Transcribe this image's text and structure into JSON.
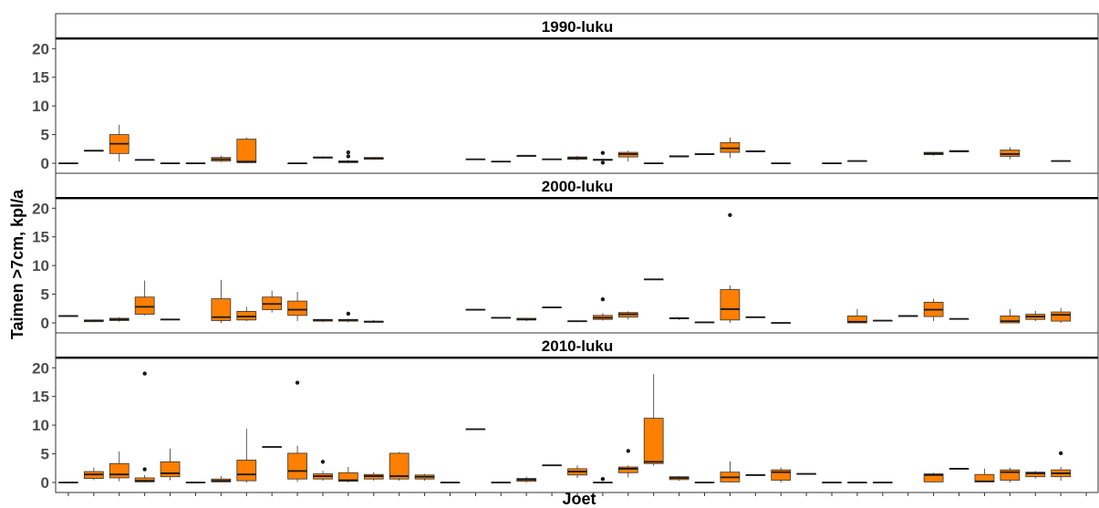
{
  "colors": {
    "box_fill": "#FF7F00"
  },
  "chart_data": {
    "type": "boxplot",
    "xlabel": "Joet",
    "ylabel": "Taimen >7cm, kpl/a",
    "ylim": [
      0,
      21
    ],
    "yticks": [
      0,
      5,
      10,
      15,
      20
    ],
    "n_categories": 41,
    "grid": false,
    "panels": [
      {
        "title": "1990-luku",
        "boxes": [
          {
            "x": 1,
            "min": 0,
            "q1": 0,
            "median": 0,
            "q3": 0,
            "max": 0
          },
          {
            "x": 2,
            "min": 2.2,
            "q1": 2.2,
            "median": 2.2,
            "q3": 2.2,
            "max": 2.2
          },
          {
            "x": 3,
            "min": 0.3,
            "q1": 1.7,
            "median": 3.4,
            "q3": 5.0,
            "max": 6.7
          },
          {
            "x": 4,
            "min": 0.6,
            "q1": 0.6,
            "median": 0.6,
            "q3": 0.6,
            "max": 0.6
          },
          {
            "x": 5,
            "min": 0,
            "q1": 0,
            "median": 0,
            "q3": 0,
            "max": 0
          },
          {
            "x": 6,
            "min": 0,
            "q1": 0,
            "median": 0,
            "q3": 0,
            "max": 0
          },
          {
            "x": 7,
            "min": 0.2,
            "q1": 0.4,
            "median": 0.7,
            "q3": 1.0,
            "max": 1.3
          },
          {
            "x": 8,
            "min": 0,
            "q1": 0.1,
            "median": 0.3,
            "q3": 4.2,
            "max": 4.5
          },
          {
            "x": 10,
            "min": 0,
            "q1": 0,
            "median": 0,
            "q3": 0,
            "max": 0
          },
          {
            "x": 11,
            "min": 0.8,
            "q1": 0.9,
            "median": 1.0,
            "q3": 1.1,
            "max": 1.2
          },
          {
            "x": 12,
            "min": 0,
            "q1": 0.1,
            "median": 0.3,
            "q3": 0.4,
            "max": 0.6,
            "outliers": [
              1.2,
              1.9
            ]
          },
          {
            "x": 13,
            "min": 0.6,
            "q1": 0.7,
            "median": 0.9,
            "q3": 1.0,
            "max": 1.1
          },
          {
            "x": 17,
            "min": 0.7,
            "q1": 0.7,
            "median": 0.7,
            "q3": 0.7,
            "max": 0.7
          },
          {
            "x": 18,
            "min": 0.3,
            "q1": 0.3,
            "median": 0.3,
            "q3": 0.3,
            "max": 0.3
          },
          {
            "x": 19,
            "min": 1.3,
            "q1": 1.3,
            "median": 1.3,
            "q3": 1.3,
            "max": 1.3
          },
          {
            "x": 20,
            "min": 0.7,
            "q1": 0.7,
            "median": 0.7,
            "q3": 0.7,
            "max": 0.7
          },
          {
            "x": 21,
            "min": 0.5,
            "q1": 0.7,
            "median": 0.9,
            "q3": 1.1,
            "max": 1.3
          },
          {
            "x": 22,
            "min": 0.4,
            "q1": 0.5,
            "median": 0.6,
            "q3": 0.7,
            "max": 0.8,
            "outliers": [
              0.1,
              1.8
            ]
          },
          {
            "x": 23,
            "min": 0.3,
            "q1": 1.1,
            "median": 1.6,
            "q3": 1.9,
            "max": 2.2
          },
          {
            "x": 24,
            "min": 0,
            "q1": 0,
            "median": 0,
            "q3": 0,
            "max": 0
          },
          {
            "x": 25,
            "min": 1.1,
            "q1": 1.1,
            "median": 1.2,
            "q3": 1.3,
            "max": 1.3
          },
          {
            "x": 26,
            "min": 1.6,
            "q1": 1.6,
            "median": 1.6,
            "q3": 1.6,
            "max": 1.6
          },
          {
            "x": 27,
            "min": 0.9,
            "q1": 1.9,
            "median": 2.6,
            "q3": 3.6,
            "max": 4.5
          },
          {
            "x": 28,
            "min": 2.1,
            "q1": 2.1,
            "median": 2.1,
            "q3": 2.1,
            "max": 2.1
          },
          {
            "x": 29,
            "min": 0,
            "q1": 0,
            "median": 0,
            "q3": 0,
            "max": 0
          },
          {
            "x": 31,
            "min": 0,
            "q1": 0,
            "median": 0,
            "q3": 0,
            "max": 0
          },
          {
            "x": 32,
            "min": 0.4,
            "q1": 0.4,
            "median": 0.4,
            "q3": 0.4,
            "max": 0.4
          },
          {
            "x": 35,
            "min": 1.3,
            "q1": 1.5,
            "median": 1.7,
            "q3": 1.9,
            "max": 2.0
          },
          {
            "x": 36,
            "min": 1.9,
            "q1": 2.0,
            "median": 2.1,
            "q3": 2.2,
            "max": 2.2
          },
          {
            "x": 38,
            "min": 0.7,
            "q1": 1.2,
            "median": 1.6,
            "q3": 2.3,
            "max": 2.8
          },
          {
            "x": 40,
            "min": 0.4,
            "q1": 0.4,
            "median": 0.4,
            "q3": 0.4,
            "max": 0.4
          }
        ]
      },
      {
        "title": "2000-luku",
        "boxes": [
          {
            "x": 1,
            "min": 1.2,
            "q1": 1.2,
            "median": 1.2,
            "q3": 1.2,
            "max": 1.2
          },
          {
            "x": 2,
            "min": 0.1,
            "q1": 0.2,
            "median": 0.4,
            "q3": 0.5,
            "max": 0.6
          },
          {
            "x": 3,
            "min": 0.2,
            "q1": 0.4,
            "median": 0.6,
            "q3": 0.8,
            "max": 1.0
          },
          {
            "x": 4,
            "min": 1.3,
            "q1": 1.5,
            "median": 2.8,
            "q3": 4.5,
            "max": 7.4
          },
          {
            "x": 5,
            "min": 0.6,
            "q1": 0.6,
            "median": 0.6,
            "q3": 0.6,
            "max": 0.6
          },
          {
            "x": 7,
            "min": 0,
            "q1": 0.4,
            "median": 1.0,
            "q3": 4.2,
            "max": 7.5
          },
          {
            "x": 8,
            "min": 0.3,
            "q1": 0.5,
            "median": 1.1,
            "q3": 2.0,
            "max": 2.8
          },
          {
            "x": 9,
            "min": 1.8,
            "q1": 2.3,
            "median": 3.3,
            "q3": 4.5,
            "max": 5.6
          },
          {
            "x": 10,
            "min": 0.3,
            "q1": 1.3,
            "median": 2.3,
            "q3": 3.8,
            "max": 5.4
          },
          {
            "x": 11,
            "min": 0.1,
            "q1": 0.3,
            "median": 0.5,
            "q3": 0.6,
            "max": 0.7
          },
          {
            "x": 12,
            "min": 0.1,
            "q1": 0.3,
            "median": 0.5,
            "q3": 0.6,
            "max": 0.7,
            "outliers": [
              1.6
            ]
          },
          {
            "x": 13,
            "min": 0,
            "q1": 0.1,
            "median": 0.2,
            "q3": 0.3,
            "max": 0.5
          },
          {
            "x": 17,
            "min": 2.3,
            "q1": 2.3,
            "median": 2.3,
            "q3": 2.3,
            "max": 2.3
          },
          {
            "x": 18,
            "min": 0.9,
            "q1": 0.9,
            "median": 0.9,
            "q3": 0.9,
            "max": 0.9
          },
          {
            "x": 19,
            "min": 0.3,
            "q1": 0.5,
            "median": 0.6,
            "q3": 0.8,
            "max": 0.9
          },
          {
            "x": 20,
            "min": 2.7,
            "q1": 2.7,
            "median": 2.7,
            "q3": 2.7,
            "max": 2.7
          },
          {
            "x": 21,
            "min": 0.1,
            "q1": 0.2,
            "median": 0.3,
            "q3": 0.3,
            "max": 0.4
          },
          {
            "x": 22,
            "min": 0.4,
            "q1": 0.6,
            "median": 0.9,
            "q3": 1.3,
            "max": 1.7,
            "outliers": [
              4.1
            ]
          },
          {
            "x": 23,
            "min": 0.6,
            "q1": 1.0,
            "median": 1.5,
            "q3": 1.8,
            "max": 2.0
          },
          {
            "x": 24,
            "min": 7.6,
            "q1": 7.6,
            "median": 7.6,
            "q3": 7.6,
            "max": 7.6
          },
          {
            "x": 25,
            "min": 0.5,
            "q1": 0.7,
            "median": 0.8,
            "q3": 0.9,
            "max": 1.0
          },
          {
            "x": 26,
            "min": 0.1,
            "q1": 0.1,
            "median": 0.1,
            "q3": 0.1,
            "max": 0.1
          },
          {
            "x": 27,
            "min": 0,
            "q1": 0.5,
            "median": 2.4,
            "q3": 5.8,
            "max": 6.5,
            "outliers": [
              18.8
            ]
          },
          {
            "x": 28,
            "min": 1.0,
            "q1": 1.0,
            "median": 1.0,
            "q3": 1.0,
            "max": 1.0
          },
          {
            "x": 29,
            "min": 0,
            "q1": 0,
            "median": 0,
            "q3": 0,
            "max": 0
          },
          {
            "x": 32,
            "min": 0,
            "q1": 0,
            "median": 0.2,
            "q3": 1.2,
            "max": 2.4
          },
          {
            "x": 33,
            "min": 0.4,
            "q1": 0.4,
            "median": 0.4,
            "q3": 0.4,
            "max": 0.4
          },
          {
            "x": 34,
            "min": 1.2,
            "q1": 1.2,
            "median": 1.2,
            "q3": 1.2,
            "max": 1.2
          },
          {
            "x": 35,
            "min": 0.3,
            "q1": 1.1,
            "median": 2.3,
            "q3": 3.6,
            "max": 4.2
          },
          {
            "x": 36,
            "min": 0.7,
            "q1": 0.7,
            "median": 0.7,
            "q3": 0.7,
            "max": 0.7
          },
          {
            "x": 38,
            "min": 0,
            "q1": 0,
            "median": 0.3,
            "q3": 1.2,
            "max": 2.4
          },
          {
            "x": 39,
            "min": 0.3,
            "q1": 0.6,
            "median": 1.1,
            "q3": 1.5,
            "max": 2.1
          },
          {
            "x": 40,
            "min": 0,
            "q1": 0.3,
            "median": 1.4,
            "q3": 1.9,
            "max": 2.6
          }
        ]
      },
      {
        "title": "2010-luku",
        "boxes": [
          {
            "x": 1,
            "min": 0,
            "q1": 0,
            "median": 0,
            "q3": 0,
            "max": 0
          },
          {
            "x": 2,
            "min": 0.4,
            "q1": 0.7,
            "median": 1.4,
            "q3": 1.9,
            "max": 2.6
          },
          {
            "x": 3,
            "min": 0.2,
            "q1": 0.8,
            "median": 1.4,
            "q3": 3.3,
            "max": 5.4
          },
          {
            "x": 4,
            "min": 0,
            "q1": 0.1,
            "median": 0.3,
            "q3": 0.8,
            "max": 1.3,
            "outliers": [
              2.3,
              19.0
            ]
          },
          {
            "x": 5,
            "min": 0.4,
            "q1": 1.0,
            "median": 1.6,
            "q3": 3.6,
            "max": 5.9
          },
          {
            "x": 6,
            "min": 0,
            "q1": 0,
            "median": 0,
            "q3": 0,
            "max": 0
          },
          {
            "x": 7,
            "min": 0,
            "q1": 0.1,
            "median": 0.3,
            "q3": 0.6,
            "max": 1.1
          },
          {
            "x": 8,
            "min": 0,
            "q1": 0.3,
            "median": 1.4,
            "q3": 3.9,
            "max": 9.4
          },
          {
            "x": 9,
            "min": 6.2,
            "q1": 6.2,
            "median": 6.2,
            "q3": 6.2,
            "max": 6.2
          },
          {
            "x": 10,
            "min": 0.1,
            "q1": 0.6,
            "median": 2.0,
            "q3": 5.1,
            "max": 6.4,
            "outliers": [
              17.4
            ]
          },
          {
            "x": 11,
            "min": 0.3,
            "q1": 0.6,
            "median": 1.1,
            "q3": 1.5,
            "max": 2.0,
            "outliers": [
              3.6
            ]
          },
          {
            "x": 12,
            "min": 0,
            "q1": 0.2,
            "median": 0.4,
            "q3": 1.7,
            "max": 2.7
          },
          {
            "x": 13,
            "min": 0.3,
            "q1": 0.6,
            "median": 1.1,
            "q3": 1.4,
            "max": 1.8
          },
          {
            "x": 14,
            "min": 0.3,
            "q1": 0.6,
            "median": 1.1,
            "q3": 5.1,
            "max": 5.3
          },
          {
            "x": 15,
            "min": 0.3,
            "q1": 0.6,
            "median": 1.0,
            "q3": 1.3,
            "max": 1.5
          },
          {
            "x": 16,
            "min": 0,
            "q1": 0,
            "median": 0,
            "q3": 0,
            "max": 0
          },
          {
            "x": 17,
            "min": 9.3,
            "q1": 9.3,
            "median": 9.3,
            "q3": 9.3,
            "max": 9.3
          },
          {
            "x": 18,
            "min": 0,
            "q1": 0,
            "median": 0,
            "q3": 0,
            "max": 0
          },
          {
            "x": 19,
            "min": 0,
            "q1": 0.2,
            "median": 0.5,
            "q3": 0.7,
            "max": 1.0
          },
          {
            "x": 20,
            "min": 3.0,
            "q1": 3.0,
            "median": 3.0,
            "q3": 3.0,
            "max": 3.0
          },
          {
            "x": 21,
            "min": 0.8,
            "q1": 1.3,
            "median": 1.9,
            "q3": 2.4,
            "max": 3.0
          },
          {
            "x": 22,
            "min": 0,
            "q1": 0,
            "median": 0,
            "q3": 0,
            "max": 0,
            "outliers": [
              0.6
            ]
          },
          {
            "x": 23,
            "min": 0.9,
            "q1": 1.7,
            "median": 2.4,
            "q3": 2.7,
            "max": 3.0,
            "outliers": [
              5.5
            ]
          },
          {
            "x": 24,
            "min": 2.9,
            "q1": 3.3,
            "median": 3.6,
            "q3": 11.2,
            "max": 18.9
          },
          {
            "x": 25,
            "min": 0.3,
            "q1": 0.5,
            "median": 0.8,
            "q3": 1.0,
            "max": 1.1
          },
          {
            "x": 26,
            "min": 0,
            "q1": 0,
            "median": 0,
            "q3": 0,
            "max": 0
          },
          {
            "x": 27,
            "min": 0,
            "q1": 0.1,
            "median": 0.9,
            "q3": 1.8,
            "max": 3.7
          },
          {
            "x": 28,
            "min": 1.3,
            "q1": 1.3,
            "median": 1.3,
            "q3": 1.3,
            "max": 1.3
          },
          {
            "x": 29,
            "min": 0,
            "q1": 0.4,
            "median": 1.8,
            "q3": 2.2,
            "max": 2.6
          },
          {
            "x": 30,
            "min": 1.5,
            "q1": 1.5,
            "median": 1.5,
            "q3": 1.5,
            "max": 1.5
          },
          {
            "x": 31,
            "min": 0,
            "q1": 0,
            "median": 0,
            "q3": 0,
            "max": 0
          },
          {
            "x": 32,
            "min": 0,
            "q1": 0,
            "median": 0,
            "q3": 0,
            "max": 0
          },
          {
            "x": 33,
            "min": 0,
            "q1": 0,
            "median": 0,
            "q3": 0,
            "max": 0
          },
          {
            "x": 35,
            "min": 0,
            "q1": 0.1,
            "median": 1.3,
            "q3": 1.5,
            "max": 1.7
          },
          {
            "x": 36,
            "min": 2.4,
            "q1": 2.4,
            "median": 2.4,
            "q3": 2.4,
            "max": 2.4
          },
          {
            "x": 37,
            "min": 0,
            "q1": 0.1,
            "median": 0.2,
            "q3": 1.4,
            "max": 2.4
          },
          {
            "x": 38,
            "min": 0,
            "q1": 0.4,
            "median": 1.8,
            "q3": 2.2,
            "max": 2.6
          },
          {
            "x": 39,
            "min": 0.7,
            "q1": 1.0,
            "median": 1.6,
            "q3": 1.8,
            "max": 2.0
          },
          {
            "x": 40,
            "min": 0.3,
            "q1": 1.0,
            "median": 1.6,
            "q3": 2.2,
            "max": 2.7,
            "outliers": [
              5.1
            ]
          }
        ]
      }
    ]
  }
}
